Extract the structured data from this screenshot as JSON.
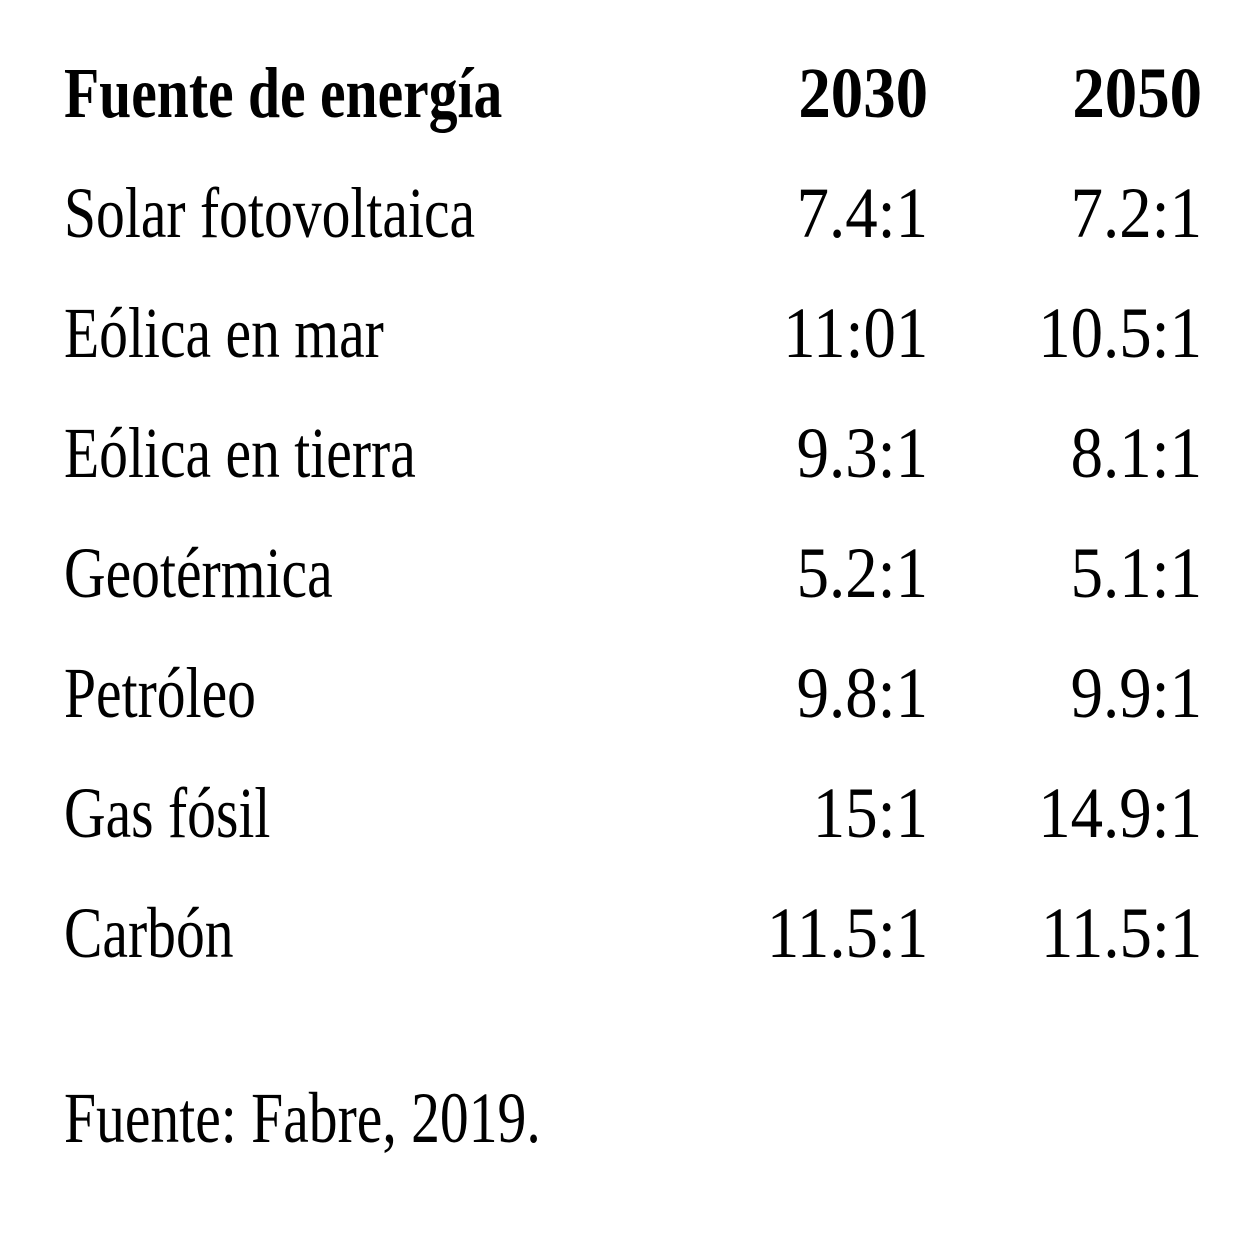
{
  "page": {
    "background_color": "#ffffff",
    "text_color": "#000000"
  },
  "table": {
    "headers": {
      "source": "Fuente de energía",
      "year_2030": "2030",
      "year_2050": "2050"
    },
    "rows": [
      {
        "source": "Solar fotovoltaica",
        "ratio_2030": "7.4:1",
        "ratio_2050": "7.2:1"
      },
      {
        "source": "Eólica en mar",
        "ratio_2030": "11:01",
        "ratio_2050": "10.5:1"
      },
      {
        "source": "Eólica en tierra",
        "ratio_2030": "9.3:1",
        "ratio_2050": "8.1:1"
      },
      {
        "source": "Geotérmica",
        "ratio_2030": "5.2:1",
        "ratio_2050": "5.1:1"
      },
      {
        "source": "Petróleo",
        "ratio_2030": "9.8:1",
        "ratio_2050": "9.9:1"
      },
      {
        "source": "Gas fósil",
        "ratio_2030": "15:1",
        "ratio_2050": "14.9:1"
      },
      {
        "source": "Carbón",
        "ratio_2030": "11.5:1",
        "ratio_2050": "11.5:1"
      }
    ]
  },
  "source_note": "Fuente: Fabre, 2019."
}
